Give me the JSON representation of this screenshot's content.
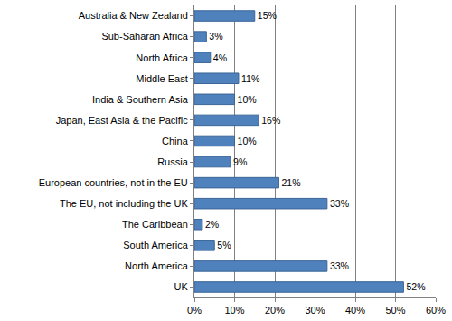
{
  "chart_data": {
    "type": "bar",
    "orientation": "horizontal",
    "categories": [
      "Australia & New Zealand",
      "Sub-Saharan Africa",
      "North Africa",
      "Middle East",
      "India & Southern Asia",
      "Japan, East Asia & the Pacific",
      "China",
      "Russia",
      "European countries, not in the EU",
      "The EU, not including the UK",
      "The Caribbean",
      "South America",
      "North America",
      "UK"
    ],
    "values": [
      15,
      3,
      4,
      11,
      10,
      16,
      10,
      9,
      21,
      33,
      2,
      5,
      33,
      52
    ],
    "value_labels": [
      "15%",
      "3%",
      "4%",
      "11%",
      "10%",
      "16%",
      "10%",
      "9%",
      "21%",
      "33%",
      "2%",
      "5%",
      "33%",
      "52%"
    ],
    "data_labels": true,
    "color": "#4f81bd",
    "xlim": [
      0,
      60
    ],
    "xticks": [
      {
        "value": 0,
        "label": "0%"
      },
      {
        "value": 10,
        "label": "10%"
      },
      {
        "value": 20,
        "label": "20%"
      },
      {
        "value": 30,
        "label": "30%"
      },
      {
        "value": 40,
        "label": "40%"
      },
      {
        "value": 50,
        "label": "50%"
      },
      {
        "value": 60,
        "label": "60%"
      }
    ],
    "grid": true
  }
}
